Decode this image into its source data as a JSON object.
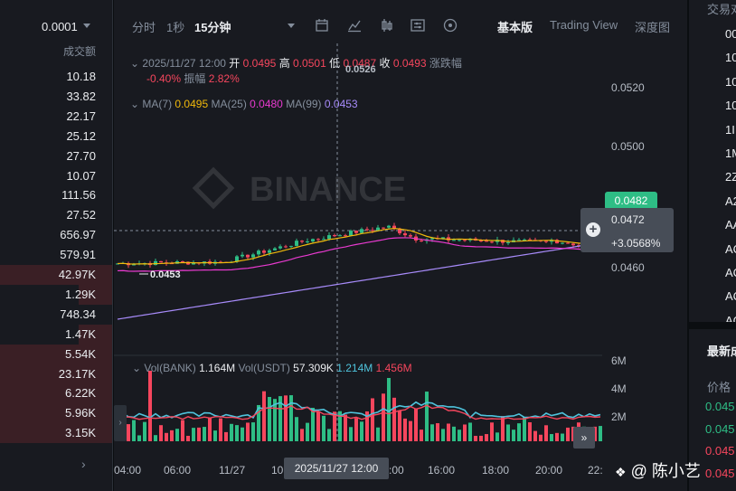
{
  "orderbook": {
    "step": "0.0001",
    "column_header": "成交额",
    "rows": [
      {
        "value": "10.18",
        "bar": 0
      },
      {
        "value": "33.82",
        "bar": 0
      },
      {
        "value": "22.17",
        "bar": 0
      },
      {
        "value": "25.12",
        "bar": 0
      },
      {
        "value": "27.70",
        "bar": 0
      },
      {
        "value": "10.07",
        "bar": 0
      },
      {
        "value": "111.56",
        "bar": 0
      },
      {
        "value": "27.52",
        "bar": 0
      },
      {
        "value": "656.97",
        "bar": 0
      },
      {
        "value": "579.91",
        "bar": 0
      },
      {
        "value": "42.97K",
        "bar": 1.0
      },
      {
        "value": "1.29K",
        "bar": 0.3
      },
      {
        "value": "748.34",
        "bar": 0
      },
      {
        "value": "1.47K",
        "bar": 0.3
      },
      {
        "value": "5.54K",
        "bar": 1.0
      },
      {
        "value": "23.17K",
        "bar": 1.0
      },
      {
        "value": "6.22K",
        "bar": 1.0
      },
      {
        "value": "5.96K",
        "bar": 1.0
      },
      {
        "value": "3.15K",
        "bar": 1.0
      }
    ]
  },
  "toolbar": {
    "time_label": "分时",
    "interval_1s": "1秒",
    "interval_active": "15分钟",
    "view_basic": "基本版",
    "view_tradingview": "Trading View",
    "view_depth": "深度图"
  },
  "ohlc": {
    "datetime": "2025/11/27 12:00",
    "open_label": "开",
    "open": "0.0495",
    "high_label": "高",
    "high": "0.0501",
    "low_label": "低",
    "low": "0.0487",
    "close_label": "收",
    "close": "0.0493",
    "change_label": "涨跌幅",
    "change": "-0.40%",
    "amplitude_label": "振幅",
    "amplitude": "2.82%"
  },
  "ma": {
    "ma7_label": "MA(7)",
    "ma7": "0.0495",
    "ma25_label": "MA(25)",
    "ma25": "0.0480",
    "ma99_label": "MA(99)",
    "ma99": "0.0453"
  },
  "volume_legend": {
    "label1": "Vol(BANK)",
    "value1": "1.164M",
    "label2": "Vol(USDT)",
    "value2": "57.309K",
    "value3": "1.214M",
    "value4": "1.456M"
  },
  "price_axis": [
    "0.0520",
    "0.0500",
    "0.0460"
  ],
  "volume_axis": [
    "6M",
    "4M",
    "2M"
  ],
  "last_price": "0.0482",
  "crosshair": {
    "price": "0.0472",
    "pct": "+3.0568%",
    "time": "2025/11/27 12:00"
  },
  "high_marker": "0.0526",
  "low_marker": "0.0453",
  "watermark_logo": "BINANCE",
  "time_axis": [
    "04:00",
    "06:00",
    "11/27",
    "10:",
    ":00",
    "16:00",
    "18:00",
    "20:00",
    "22:"
  ],
  "right_panel": {
    "header": "交易对",
    "items": [
      "00",
      "10",
      "10",
      "10",
      "1I",
      "1M",
      "2Z",
      "A2",
      "AA",
      "AC",
      "AC",
      "AC",
      "AC"
    ],
    "news_header": "最新成",
    "price_label": "价格",
    "prices": [
      {
        "text": "0.045",
        "color": "#2ebd85"
      },
      {
        "text": "0.045",
        "color": "#2ebd85"
      },
      {
        "text": "0.045",
        "color": "#f6465d"
      },
      {
        "text": "0.045",
        "color": "#f6465d"
      },
      {
        "text": "0.045",
        "color": "#f6465d"
      }
    ]
  },
  "watermark_text": "@ 陈小艺",
  "colors": {
    "up": "#2ebd85",
    "down": "#f6465d",
    "ma7": "#f0b90b",
    "ma25": "#e93ad0",
    "ma99": "#a78bfa"
  }
}
